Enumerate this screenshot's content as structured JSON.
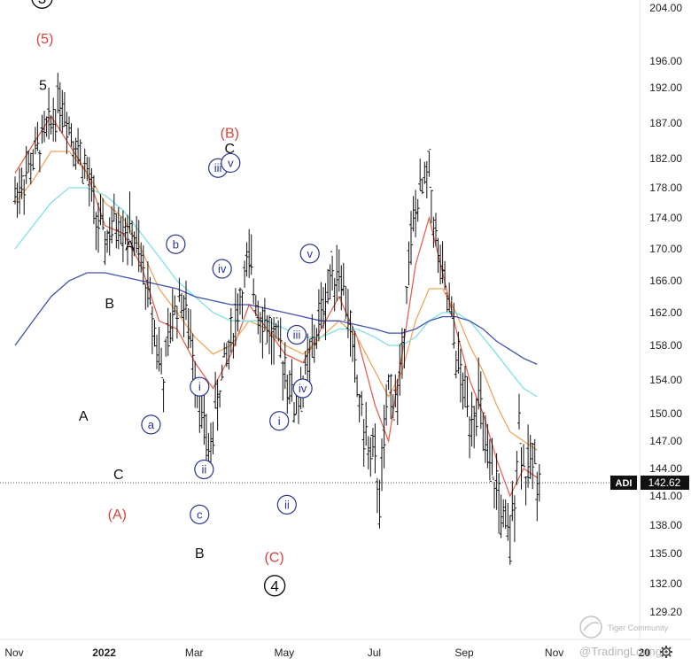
{
  "chart_data": {
    "type": "ohlc",
    "title": "",
    "ticker": "ADI",
    "last_price": "142.62",
    "last_price_value": 142.62,
    "yticks": [
      "204.00",
      "196.00",
      "192.00",
      "187.00",
      "182.00",
      "178.00",
      "174.00",
      "170.00",
      "166.00",
      "162.00",
      "158.00",
      "154.00",
      "150.00",
      "147.00",
      "144.00",
      "141.00",
      "138.00",
      "135.00",
      "132.00",
      "129.20"
    ],
    "ytick_values": [
      204.0,
      196.0,
      192.0,
      187.0,
      182.0,
      178.0,
      174.0,
      170.0,
      166.0,
      162.0,
      158.0,
      154.0,
      150.0,
      147.0,
      144.0,
      141.0,
      138.0,
      135.0,
      132.0,
      129.2
    ],
    "xticks": [
      {
        "label": "Nov",
        "bold": false,
        "month_index": 0
      },
      {
        "label": "2022",
        "bold": true,
        "month_index": 2
      },
      {
        "label": "Mar",
        "bold": false,
        "month_index": 4
      },
      {
        "label": "May",
        "bold": false,
        "month_index": 6
      },
      {
        "label": "Jul",
        "bold": false,
        "month_index": 8
      },
      {
        "label": "Sep",
        "bold": false,
        "month_index": 10
      },
      {
        "label": "Nov",
        "bold": false,
        "month_index": 12
      },
      {
        "label": "20",
        "bold": true,
        "month_index": 14
      }
    ],
    "price_path": [
      [
        0,
        177
      ],
      [
        0.4,
        182
      ],
      [
        0.8,
        187
      ],
      [
        1,
        191
      ],
      [
        1.3,
        185
      ],
      [
        1.6,
        180
      ],
      [
        1.8,
        174
      ],
      [
        2,
        171
      ],
      [
        2.3,
        174
      ],
      [
        2.6,
        172
      ],
      [
        2.9,
        166
      ],
      [
        3.1,
        160
      ],
      [
        3.3,
        154
      ],
      [
        3.5,
        162
      ],
      [
        3.7,
        164
      ],
      [
        3.9,
        159
      ],
      [
        4.1,
        152
      ],
      [
        4.3,
        145
      ],
      [
        4.5,
        152
      ],
      [
        4.8,
        159
      ],
      [
        5,
        164
      ],
      [
        5.2,
        168
      ],
      [
        5.4,
        163
      ],
      [
        5.7,
        159
      ],
      [
        6,
        156
      ],
      [
        6.2,
        151
      ],
      [
        6.5,
        155
      ],
      [
        6.8,
        162
      ],
      [
        7,
        166
      ],
      [
        7.2,
        168
      ],
      [
        7.4,
        162
      ],
      [
        7.6,
        153
      ],
      [
        7.8,
        147
      ],
      [
        8,
        144
      ],
      [
        8.1,
        141
      ],
      [
        8.2,
        146
      ],
      [
        8.3,
        153
      ],
      [
        8.5,
        152
      ],
      [
        8.6,
        156
      ],
      [
        8.7,
        166
      ],
      [
        8.9,
        175
      ],
      [
        9,
        177
      ],
      [
        9.2,
        180
      ],
      [
        9.35,
        171
      ],
      [
        9.5,
        166
      ],
      [
        9.7,
        161
      ],
      [
        9.9,
        154
      ],
      [
        10.1,
        150
      ],
      [
        10.3,
        152
      ],
      [
        10.5,
        144
      ],
      [
        10.7,
        142
      ],
      [
        10.9,
        137
      ],
      [
        11,
        136
      ],
      [
        11.1,
        142
      ],
      [
        11.2,
        149
      ],
      [
        11.35,
        143
      ],
      [
        11.5,
        145
      ],
      [
        11.7,
        143
      ]
    ],
    "ma_lines": [
      {
        "name": "MA fast",
        "color": "#e8624f",
        "points": [
          [
            0,
            180
          ],
          [
            0.4,
            184
          ],
          [
            0.8,
            188
          ],
          [
            1.2,
            184
          ],
          [
            1.6,
            180
          ],
          [
            2,
            173
          ],
          [
            2.4,
            172
          ],
          [
            2.8,
            168
          ],
          [
            3.2,
            161
          ],
          [
            3.6,
            160
          ],
          [
            4,
            156
          ],
          [
            4.4,
            153
          ],
          [
            4.8,
            157
          ],
          [
            5.2,
            163
          ],
          [
            5.6,
            160
          ],
          [
            6,
            157
          ],
          [
            6.4,
            156
          ],
          [
            6.8,
            160
          ],
          [
            7.2,
            164
          ],
          [
            7.6,
            159
          ],
          [
            8,
            151
          ],
          [
            8.3,
            147
          ],
          [
            8.6,
            157
          ],
          [
            8.9,
            168
          ],
          [
            9.2,
            174
          ],
          [
            9.5,
            167
          ],
          [
            9.8,
            160
          ],
          [
            10.1,
            154
          ],
          [
            10.4,
            150
          ],
          [
            10.7,
            145
          ],
          [
            11,
            141
          ],
          [
            11.3,
            144
          ],
          [
            11.6,
            143
          ]
        ]
      },
      {
        "name": "MA mid",
        "color": "#f2a55a",
        "points": [
          [
            0,
            176
          ],
          [
            0.4,
            179
          ],
          [
            0.8,
            183
          ],
          [
            1.2,
            183
          ],
          [
            1.6,
            180
          ],
          [
            2,
            176
          ],
          [
            2.4,
            174
          ],
          [
            2.8,
            170
          ],
          [
            3.2,
            165
          ],
          [
            3.6,
            162
          ],
          [
            4,
            159
          ],
          [
            4.4,
            157
          ],
          [
            4.8,
            158
          ],
          [
            5.2,
            161
          ],
          [
            5.6,
            160
          ],
          [
            6,
            158
          ],
          [
            6.4,
            157
          ],
          [
            6.8,
            159
          ],
          [
            7.2,
            161
          ],
          [
            7.6,
            159
          ],
          [
            8,
            155
          ],
          [
            8.3,
            152
          ],
          [
            8.6,
            155
          ],
          [
            8.9,
            161
          ],
          [
            9.2,
            165
          ],
          [
            9.5,
            165
          ],
          [
            9.8,
            162
          ],
          [
            10.1,
            158
          ],
          [
            10.4,
            155
          ],
          [
            10.7,
            151
          ],
          [
            11,
            148
          ],
          [
            11.3,
            147
          ],
          [
            11.6,
            146
          ]
        ]
      },
      {
        "name": "MA slow",
        "color": "#7ee0e8",
        "points": [
          [
            0,
            170
          ],
          [
            0.4,
            173
          ],
          [
            0.8,
            176
          ],
          [
            1.2,
            178
          ],
          [
            1.6,
            178
          ],
          [
            2,
            177
          ],
          [
            2.4,
            175
          ],
          [
            2.8,
            172
          ],
          [
            3.2,
            169
          ],
          [
            3.6,
            166
          ],
          [
            4,
            164
          ],
          [
            4.4,
            162
          ],
          [
            4.8,
            161
          ],
          [
            5.2,
            161
          ],
          [
            5.6,
            161
          ],
          [
            6,
            160
          ],
          [
            6.4,
            159
          ],
          [
            6.8,
            159
          ],
          [
            7.2,
            160
          ],
          [
            7.6,
            160
          ],
          [
            8,
            159
          ],
          [
            8.3,
            158
          ],
          [
            8.6,
            158
          ],
          [
            8.9,
            159
          ],
          [
            9.2,
            161
          ],
          [
            9.5,
            162
          ],
          [
            9.8,
            162
          ],
          [
            10.1,
            161
          ],
          [
            10.4,
            159
          ],
          [
            10.7,
            157
          ],
          [
            11,
            155
          ],
          [
            11.3,
            153
          ],
          [
            11.6,
            152
          ]
        ]
      },
      {
        "name": "MA long",
        "color": "#3f51b5",
        "points": [
          [
            0,
            158
          ],
          [
            0.4,
            161
          ],
          [
            0.8,
            164
          ],
          [
            1.2,
            166
          ],
          [
            1.6,
            167
          ],
          [
            2,
            167
          ],
          [
            2.4,
            166.5
          ],
          [
            2.8,
            166
          ],
          [
            3.2,
            165.5
          ],
          [
            3.6,
            165
          ],
          [
            4,
            164
          ],
          [
            4.4,
            163.5
          ],
          [
            4.8,
            163
          ],
          [
            5.2,
            163
          ],
          [
            5.6,
            162.5
          ],
          [
            6,
            162
          ],
          [
            6.4,
            161.5
          ],
          [
            6.8,
            161
          ],
          [
            7.2,
            161
          ],
          [
            7.6,
            160.5
          ],
          [
            8,
            160
          ],
          [
            8.3,
            159.5
          ],
          [
            8.6,
            159.5
          ],
          [
            8.9,
            160
          ],
          [
            9.2,
            161
          ],
          [
            9.5,
            161.5
          ],
          [
            9.8,
            161.5
          ],
          [
            10.1,
            161
          ],
          [
            10.4,
            160
          ],
          [
            10.7,
            158.5
          ],
          [
            11,
            157.5
          ],
          [
            11.3,
            156.5
          ],
          [
            11.6,
            155.8
          ]
        ]
      }
    ],
    "annotations": [
      {
        "text": "3",
        "style": "big-circle",
        "x": 0.6,
        "y": 205.5
      },
      {
        "text": "(5)",
        "style": "red",
        "x": 0.66,
        "y": 199.5
      },
      {
        "text": "5",
        "style": "black",
        "x": 0.62,
        "y": 192.5
      },
      {
        "text": "A",
        "style": "black",
        "x": 2.55,
        "y": 170.5
      },
      {
        "text": "B",
        "style": "black",
        "x": 2.1,
        "y": 163.2
      },
      {
        "text": "A",
        "style": "black",
        "x": 1.52,
        "y": 149.8
      },
      {
        "text": "C",
        "style": "black",
        "x": 2.3,
        "y": 143.4
      },
      {
        "text": "(A)",
        "style": "red",
        "x": 2.27,
        "y": 139.2
      },
      {
        "text": "a",
        "style": "circle",
        "x": 3.02,
        "y": 148.8
      },
      {
        "text": "b",
        "style": "circle",
        "x": 3.57,
        "y": 170.6
      },
      {
        "text": "i",
        "style": "circle",
        "x": 4.1,
        "y": 153.2
      },
      {
        "text": "ii",
        "style": "circle",
        "x": 4.2,
        "y": 143.9
      },
      {
        "text": "c",
        "style": "circle",
        "x": 4.1,
        "y": 139.1
      },
      {
        "text": "B",
        "style": "black",
        "x": 4.1,
        "y": 135.1
      },
      {
        "text": "iii",
        "style": "circle",
        "x": 4.51,
        "y": 180.7
      },
      {
        "text": "iv",
        "style": "circle",
        "x": 4.6,
        "y": 167.5
      },
      {
        "text": "v",
        "style": "circle",
        "x": 4.79,
        "y": 181.4
      },
      {
        "text": "(B)",
        "style": "red",
        "x": 4.77,
        "y": 185.7
      },
      {
        "text": "C",
        "style": "black",
        "x": 4.77,
        "y": 183.5
      },
      {
        "text": "i",
        "style": "circle",
        "x": 5.87,
        "y": 149.2
      },
      {
        "text": "ii",
        "style": "circle",
        "x": 6.04,
        "y": 140.1
      },
      {
        "text": "(C)",
        "style": "red",
        "x": 5.76,
        "y": 134.7
      },
      {
        "text": "4",
        "style": "big-circle",
        "x": 5.77,
        "y": 131.8
      },
      {
        "text": "iii",
        "style": "circle",
        "x": 6.26,
        "y": 159.3
      },
      {
        "text": "iv",
        "style": "circle",
        "x": 6.39,
        "y": 153.0
      },
      {
        "text": "v",
        "style": "circle",
        "x": 6.55,
        "y": 169.4
      }
    ]
  },
  "watermark": {
    "brand": "Tiger Community",
    "handle": "@TradingLounge"
  },
  "icons": {
    "settings": "gear-icon"
  }
}
